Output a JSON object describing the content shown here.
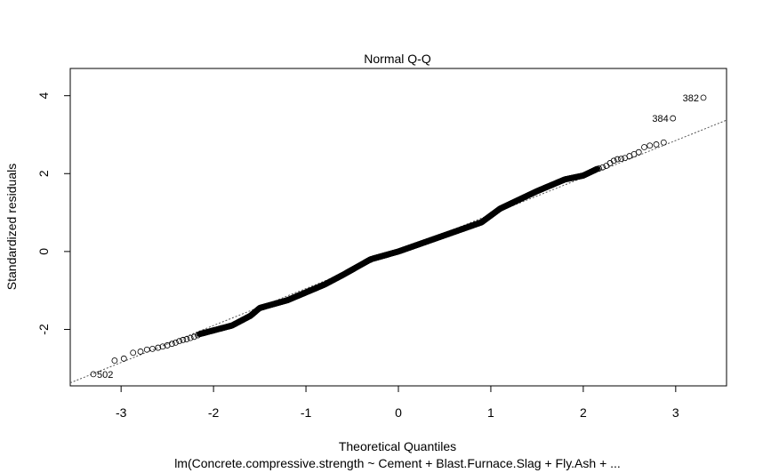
{
  "chart_data": {
    "type": "scatter",
    "title": "Normal Q-Q",
    "xlabel": "Theoretical Quantiles",
    "sublabel": "lm(Concrete.compressive.strength ~ Cement + Blast.Furnace.Slag + Fly.Ash +  ...",
    "ylabel": "Standardized residuals",
    "xlim": [
      -3.55,
      3.55
    ],
    "ylim": [
      -3.45,
      4.7
    ],
    "x_ticks": [
      -3,
      -2,
      -1,
      0,
      1,
      2,
      3
    ],
    "x_tick_labels": [
      "-3",
      "-2",
      "-1",
      "0",
      "1",
      "2",
      "3"
    ],
    "y_ticks": [
      -2,
      0,
      2,
      4
    ],
    "y_tick_labels": [
      "-2",
      "0",
      "2",
      "4"
    ],
    "reference_line": {
      "slope": 0.95,
      "intercept": 0,
      "style": "dotted"
    },
    "grid": false,
    "n_points": 1030,
    "point_style": "open circle",
    "labeled_points": [
      {
        "label": "382",
        "x": 3.3,
        "y": 3.95
      },
      {
        "label": "384",
        "x": 2.97,
        "y": 3.42
      },
      {
        "label": "502",
        "x": -3.3,
        "y": -3.15
      }
    ],
    "tail_points": [
      [
        -3.3,
        -3.15
      ],
      [
        -3.07,
        -2.8
      ],
      [
        -2.97,
        -2.75
      ],
      [
        -2.87,
        -2.6
      ],
      [
        -2.79,
        -2.57
      ],
      [
        -2.72,
        -2.52
      ],
      [
        -2.66,
        -2.5
      ],
      [
        -2.6,
        -2.47
      ],
      [
        -2.55,
        -2.44
      ],
      [
        -2.5,
        -2.41
      ],
      [
        -2.45,
        -2.37
      ],
      [
        -2.41,
        -2.34
      ],
      [
        -2.37,
        -2.3
      ],
      [
        -2.33,
        -2.27
      ],
      [
        -2.29,
        -2.25
      ],
      [
        -2.25,
        -2.22
      ],
      [
        -2.21,
        -2.19
      ],
      [
        -2.17,
        -2.15
      ],
      [
        2.17,
        2.13
      ],
      [
        2.21,
        2.16
      ],
      [
        2.25,
        2.2
      ],
      [
        2.29,
        2.27
      ],
      [
        2.33,
        2.33
      ],
      [
        2.37,
        2.37
      ],
      [
        2.41,
        2.38
      ],
      [
        2.45,
        2.4
      ],
      [
        2.5,
        2.45
      ],
      [
        2.55,
        2.5
      ],
      [
        2.6,
        2.55
      ],
      [
        2.66,
        2.68
      ],
      [
        2.72,
        2.72
      ],
      [
        2.79,
        2.75
      ],
      [
        2.87,
        2.8
      ],
      [
        2.97,
        3.42
      ],
      [
        3.3,
        3.95
      ]
    ],
    "body_curve": [
      [
        -2.15,
        -2.12
      ],
      [
        -1.8,
        -1.9
      ],
      [
        -1.6,
        -1.65
      ],
      [
        -1.5,
        -1.45
      ],
      [
        -1.2,
        -1.25
      ],
      [
        -0.8,
        -0.85
      ],
      [
        -0.6,
        -0.6
      ],
      [
        -0.3,
        -0.2
      ],
      [
        0,
        0
      ],
      [
        0.3,
        0.25
      ],
      [
        0.6,
        0.5
      ],
      [
        0.9,
        0.75
      ],
      [
        1.1,
        1.1
      ],
      [
        1.5,
        1.55
      ],
      [
        1.8,
        1.85
      ],
      [
        2.0,
        1.95
      ],
      [
        2.15,
        2.12
      ]
    ]
  }
}
